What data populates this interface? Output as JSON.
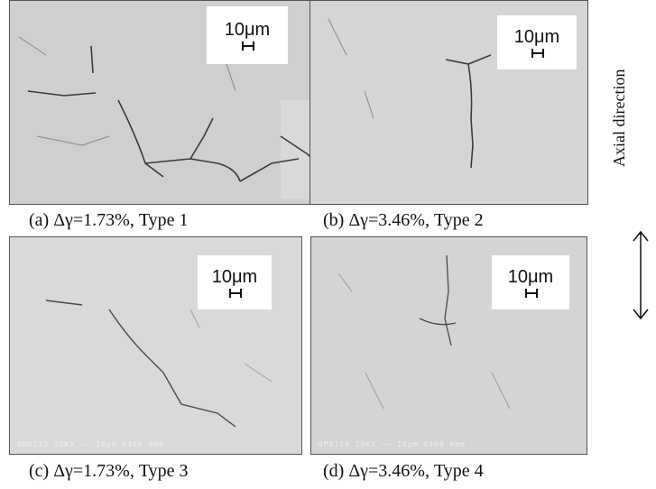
{
  "panels": [
    {
      "id": "a",
      "scale_label": "10μm",
      "caption": "(a)  Δγ=1.73%, Type 1"
    },
    {
      "id": "b",
      "scale_label": "10μm",
      "caption": "(b)  Δγ=3.46%, Type 2"
    },
    {
      "id": "c",
      "scale_label": "10μm",
      "caption": "(c)  Δγ=1.73%, Type 3",
      "footer": "0M0133   20KV    ——  10μm   X400  0mm"
    },
    {
      "id": "d",
      "scale_label": "10μm",
      "caption": "(d)  Δγ=3.46%, Type 4",
      "footer": "0M0114   20KV    ——  10μm   X400  0mm"
    }
  ],
  "direction": {
    "label": "Axial  direction"
  }
}
